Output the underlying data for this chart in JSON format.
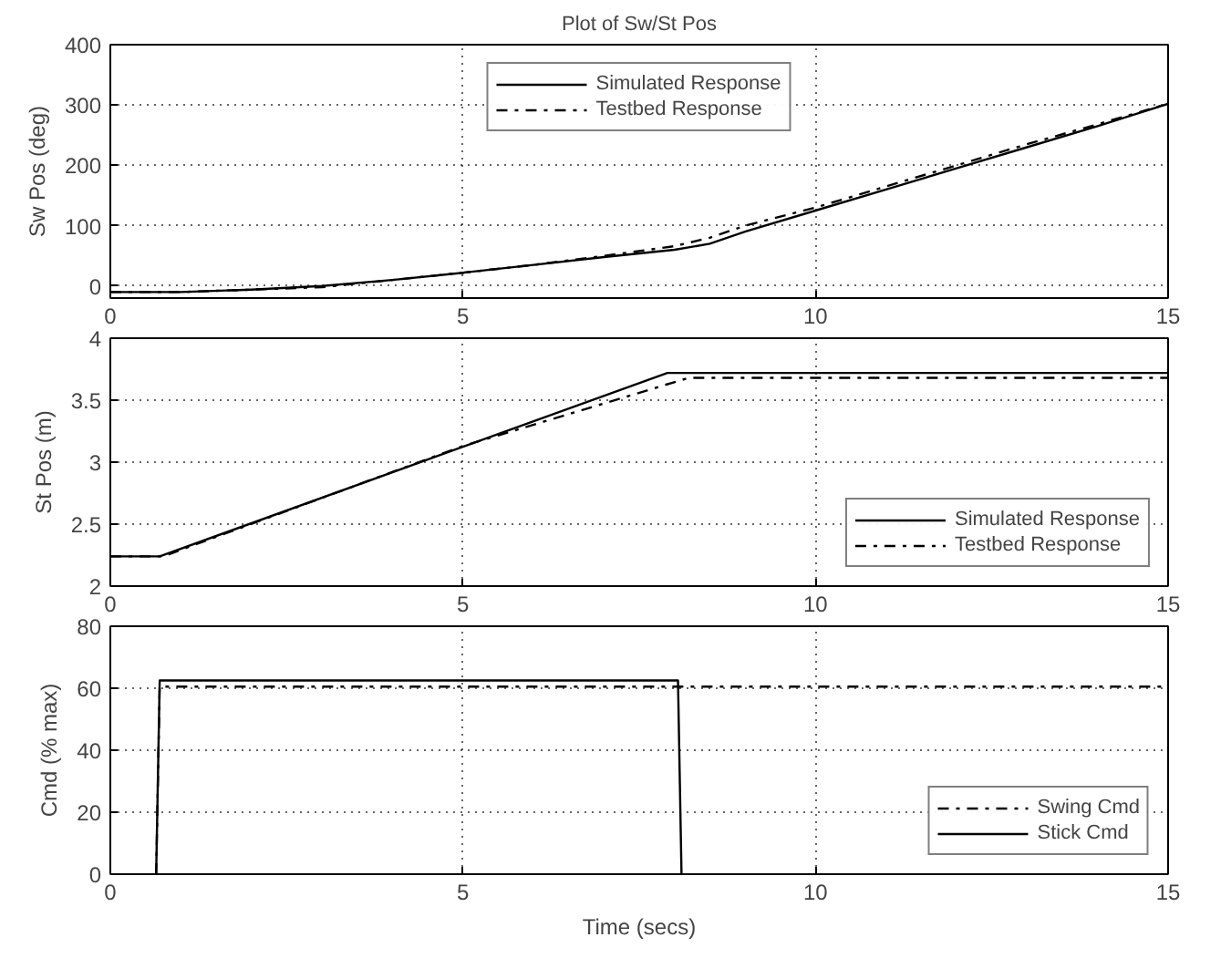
{
  "chart_data": [
    {
      "type": "line",
      "title": "Plot of Sw/St Pos",
      "ylabel": "Sw Pos (deg)",
      "xlim": [
        0,
        15
      ],
      "xticks": [
        0,
        5,
        10,
        15
      ],
      "ylim": [
        -20,
        400
      ],
      "yticks": [
        0,
        100,
        200,
        300,
        400
      ],
      "grid": true,
      "legend": "top",
      "series": [
        {
          "name": "Simulated Response",
          "color": "#000000",
          "line_style": "solid",
          "x": [
            0,
            1,
            2,
            3,
            4,
            5,
            6,
            7,
            8,
            8.5,
            9,
            10,
            11,
            12,
            13,
            14,
            15
          ],
          "values": [
            -10,
            -10,
            -6,
            0,
            10,
            22,
            35,
            48,
            60,
            70,
            90,
            125,
            160,
            195,
            230,
            265,
            302
          ]
        },
        {
          "name": "Testbed Response",
          "color": "#000000",
          "line_style": "dashdot",
          "x": [
            0,
            1,
            2,
            3,
            4,
            5,
            6,
            7,
            8,
            8.5,
            9,
            10,
            11,
            12,
            13,
            14,
            15
          ],
          "values": [
            -10,
            -10,
            -6,
            -2,
            10,
            22,
            35,
            50,
            66,
            80,
            100,
            130,
            165,
            200,
            235,
            268,
            302
          ]
        }
      ]
    },
    {
      "type": "line",
      "ylabel": "St Pos (m)",
      "xlim": [
        0,
        15
      ],
      "xticks": [
        0,
        5,
        10,
        15
      ],
      "ylim": [
        2,
        4
      ],
      "yticks": [
        2,
        2.5,
        3,
        3.5,
        4
      ],
      "grid": true,
      "legend": "bottom right",
      "series": [
        {
          "name": "Simulated Response",
          "color": "#000000",
          "line_style": "solid",
          "x": [
            0,
            0.7,
            7.9,
            15
          ],
          "values": [
            2.24,
            2.24,
            3.72,
            3.72
          ]
        },
        {
          "name": "Testbed Response",
          "color": "#000000",
          "line_style": "dashdot",
          "x": [
            0,
            0.75,
            5,
            8.2,
            15
          ],
          "values": [
            2.24,
            2.24,
            3.13,
            3.68,
            3.68
          ]
        }
      ]
    },
    {
      "type": "line",
      "ylabel": "Cmd (% max)",
      "xlabel": "Time (secs)",
      "xlim": [
        0,
        15
      ],
      "xticks": [
        0,
        5,
        10,
        15
      ],
      "ylim": [
        0,
        80
      ],
      "yticks": [
        0,
        20,
        40,
        60,
        80
      ],
      "grid": true,
      "legend": "bottom right",
      "series": [
        {
          "name": "Swing Cmd",
          "color": "#000000",
          "line_style": "dashdot",
          "x": [
            0.65,
            0.7,
            15
          ],
          "values": [
            0,
            60.5,
            60.5
          ]
        },
        {
          "name": "Stick Cmd",
          "color": "#000000",
          "line_style": "solid",
          "x": [
            0.65,
            0.7,
            8.05,
            8.1
          ],
          "values": [
            0,
            62.5,
            62.5,
            0
          ]
        }
      ]
    }
  ]
}
